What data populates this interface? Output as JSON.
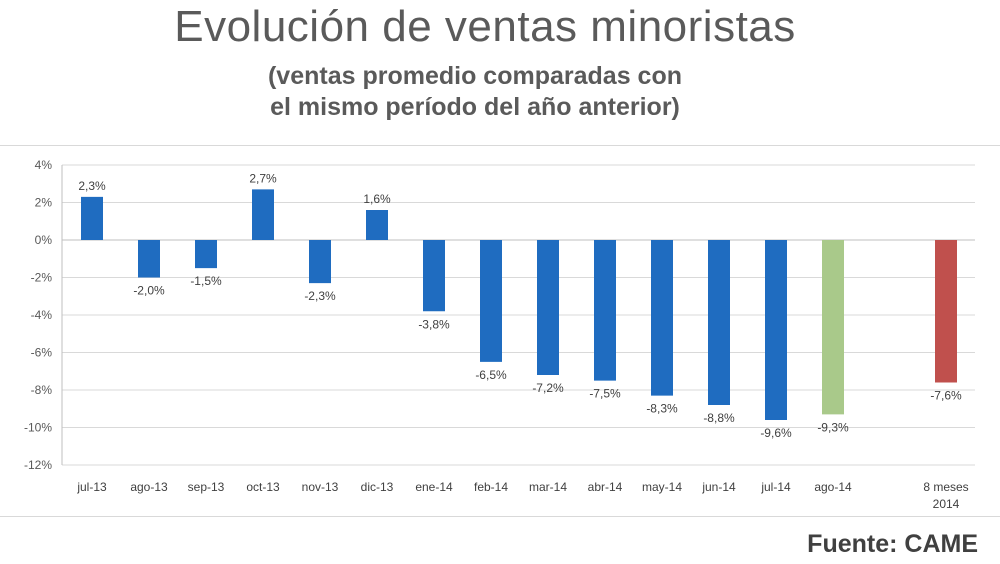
{
  "title": "Evolución de ventas minoristas",
  "subtitle_line1": "(ventas promedio comparadas con",
  "subtitle_line2": "el mismo período del año anterior)",
  "source": "Fuente: CAME",
  "chart_data": {
    "type": "bar",
    "categories": [
      "jul-13",
      "ago-13",
      "sep-13",
      "oct-13",
      "nov-13",
      "dic-13",
      "ene-14",
      "feb-14",
      "mar-14",
      "abr-14",
      "may-14",
      "jun-14",
      "jul-14",
      "ago-14",
      "8 meses\n2014"
    ],
    "values": [
      2.3,
      -2.0,
      -1.5,
      2.7,
      -2.3,
      1.6,
      -3.8,
      -6.5,
      -7.2,
      -7.5,
      -8.3,
      -8.8,
      -9.6,
      -9.3,
      -7.6
    ],
    "data_labels": [
      "2,3%",
      "-2,0%",
      "-1,5%",
      "2,7%",
      "-2,3%",
      "1,6%",
      "-3,8%",
      "-6,5%",
      "-7,2%",
      "-7,5%",
      "-8,3%",
      "-8,8%",
      "-9,6%",
      "-9,3%",
      "-7,6%"
    ],
    "bar_colors": [
      "#1f6cc0",
      "#1f6cc0",
      "#1f6cc0",
      "#1f6cc0",
      "#1f6cc0",
      "#1f6cc0",
      "#1f6cc0",
      "#1f6cc0",
      "#1f6cc0",
      "#1f6cc0",
      "#1f6cc0",
      "#1f6cc0",
      "#1f6cc0",
      "#a9c98a",
      "#c0504d"
    ],
    "ylim": [
      -12,
      4
    ],
    "y_ticks": [
      4,
      2,
      0,
      -2,
      -4,
      -6,
      -8,
      -10,
      -12
    ],
    "y_tick_labels": [
      "4%",
      "2%",
      "0%",
      "-2%",
      "-4%",
      "-6%",
      "-8%",
      "-10%",
      "-12%"
    ],
    "grid": true,
    "xlabel": "",
    "ylabel": ""
  }
}
